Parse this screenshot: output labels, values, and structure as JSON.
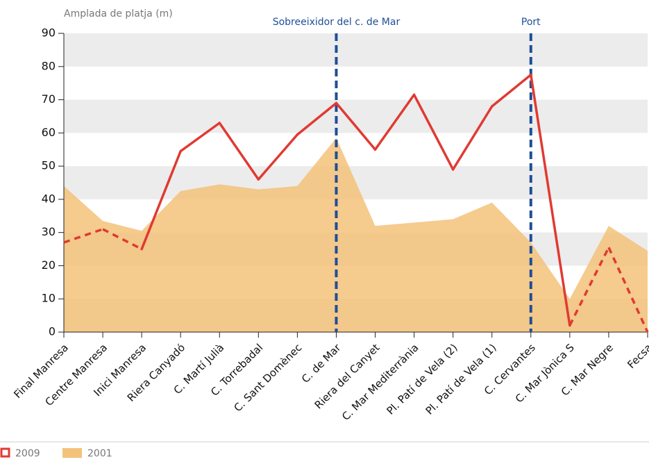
{
  "chart_data": {
    "type": "line_area",
    "y_axis_label": "Amplada de platja (m)",
    "categories": [
      "Final Manresa",
      "Centre Manresa",
      "Inici Manresa",
      "Riera Canyadó",
      "C. Martí Julià",
      "C. Torrebadal",
      "C. Sant Domènec",
      "C. de Mar",
      "Riera del Canyet",
      "C. Mar Mediterrània",
      "Pl. Patí de Vela (2)",
      "Pl. Patí de Vela (1)",
      "C. Cervantes",
      "C. Mar Jònica S",
      "C. Mar Negre",
      "Fecsa"
    ],
    "series": [
      {
        "name": "2009",
        "kind": "line",
        "color": "#e03a32",
        "values": [
          27,
          31,
          25,
          54.5,
          63,
          46,
          59.5,
          69,
          55,
          71.5,
          49,
          68,
          77.5,
          2,
          25.5,
          0
        ],
        "dashed_ranges": [
          [
            0,
            2
          ],
          [
            13,
            15
          ]
        ]
      },
      {
        "name": "2001",
        "kind": "area",
        "color": "#f3c27a",
        "values": [
          44,
          33.5,
          30.5,
          42.5,
          44.5,
          43,
          44,
          58.5,
          32,
          33,
          34,
          39,
          27,
          10,
          32,
          24.5
        ]
      }
    ],
    "markers": [
      {
        "category": "C. de Mar",
        "label": "Sobreeixidor del c. de Mar",
        "color": "#1f4e96"
      },
      {
        "category": "C. Cervantes",
        "label": "Port",
        "color": "#1f4e96"
      }
    ],
    "ylim": [
      0,
      90
    ],
    "yticks": [
      0,
      10,
      20,
      30,
      40,
      50,
      60,
      70,
      80,
      90
    ],
    "grid": "bands",
    "legend": "bottom-left"
  }
}
